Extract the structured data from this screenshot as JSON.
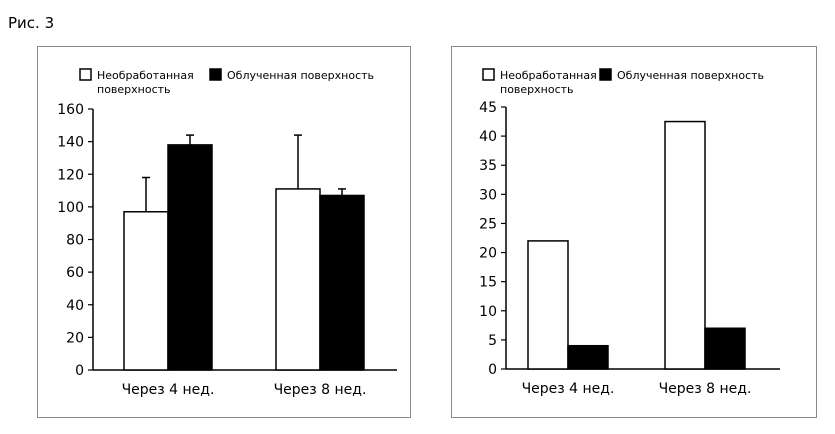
{
  "figure": {
    "label": "Рис. 3"
  },
  "chart_data": [
    {
      "type": "bar",
      "categories": [
        "Через 4 нед.",
        "Через 8 нед."
      ],
      "series": [
        {
          "name": "Необработанная поверхность",
          "values": [
            97,
            111
          ],
          "errors": [
            21,
            33
          ],
          "color": "#ffffff"
        },
        {
          "name": "Облученная поверхность",
          "values": [
            138,
            107
          ],
          "errors": [
            6,
            4
          ],
          "color": "#000000"
        }
      ],
      "legend": {
        "items": [
          {
            "lines": [
              "Необработанная",
              "поверхность"
            ],
            "color": "#ffffff"
          },
          {
            "lines": [
              "Облученная поверхность"
            ],
            "color": "#000000"
          }
        ],
        "position": "top"
      },
      "yticks": [
        "0",
        "20",
        "40",
        "60",
        "80",
        "100",
        "120",
        "140",
        "160"
      ],
      "ylim": [
        0,
        160
      ],
      "grid": false
    },
    {
      "type": "bar",
      "categories": [
        "Через 4 нед.",
        "Через 8 нед."
      ],
      "series": [
        {
          "name": "Необработанная поверхность",
          "values": [
            22,
            42.5
          ],
          "color": "#ffffff"
        },
        {
          "name": "Облученная поверхность",
          "values": [
            4,
            7
          ],
          "color": "#000000"
        }
      ],
      "legend": {
        "items": [
          {
            "lines": [
              "Необработанная",
              "поверхность"
            ],
            "color": "#ffffff"
          },
          {
            "lines": [
              "Облученная поверхность"
            ],
            "color": "#000000"
          }
        ],
        "position": "top"
      },
      "yticks": [
        "0",
        "5",
        "10",
        "15",
        "20",
        "25",
        "30",
        "35",
        "40",
        "45"
      ],
      "ylim": [
        0,
        45
      ],
      "grid": false
    }
  ]
}
